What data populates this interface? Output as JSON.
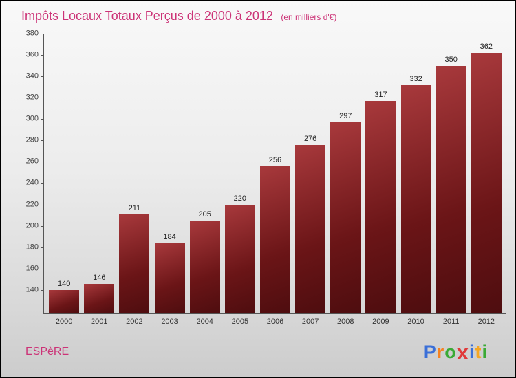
{
  "header": {
    "title": "Impôts Locaux Totaux Perçus de 2000 à 2012",
    "subtitle": "(en milliers d'€)",
    "title_color": "#cc3377"
  },
  "chart_data": {
    "type": "bar",
    "title": "Impôts Locaux Totaux Perçus de 2000 à 2012",
    "subtitle_unit": "(en milliers d'€)",
    "categories": [
      "2000",
      "2001",
      "2002",
      "2003",
      "2004",
      "2005",
      "2006",
      "2007",
      "2008",
      "2009",
      "2010",
      "2011",
      "2012"
    ],
    "values": [
      140,
      146,
      211,
      184,
      205,
      220,
      256,
      276,
      297,
      317,
      332,
      350,
      362
    ],
    "yticks": [
      140,
      160,
      180,
      200,
      220,
      240,
      260,
      280,
      300,
      320,
      340,
      360,
      380
    ],
    "ylim": [
      118,
      380
    ],
    "grid": false,
    "legend": false,
    "bar_gradient": [
      "#a8393c",
      "#6b1517",
      "#4e0d0f"
    ],
    "axis_color": "#555555",
    "label_color": "#222222"
  },
  "footer": {
    "attribution": "ESPèRE",
    "brand": {
      "name": "Proxiti",
      "letters": [
        {
          "ch": "P",
          "color": "#3a6fd8"
        },
        {
          "ch": "r",
          "color": "#f58220"
        },
        {
          "ch": "o",
          "color": "#3aaa35"
        },
        {
          "ch": "x",
          "color": "#e03a3a"
        },
        {
          "ch": "i",
          "color": "#3a6fd8"
        },
        {
          "ch": "t",
          "color": "#f5a623"
        },
        {
          "ch": "i",
          "color": "#3aaa35"
        }
      ]
    }
  }
}
